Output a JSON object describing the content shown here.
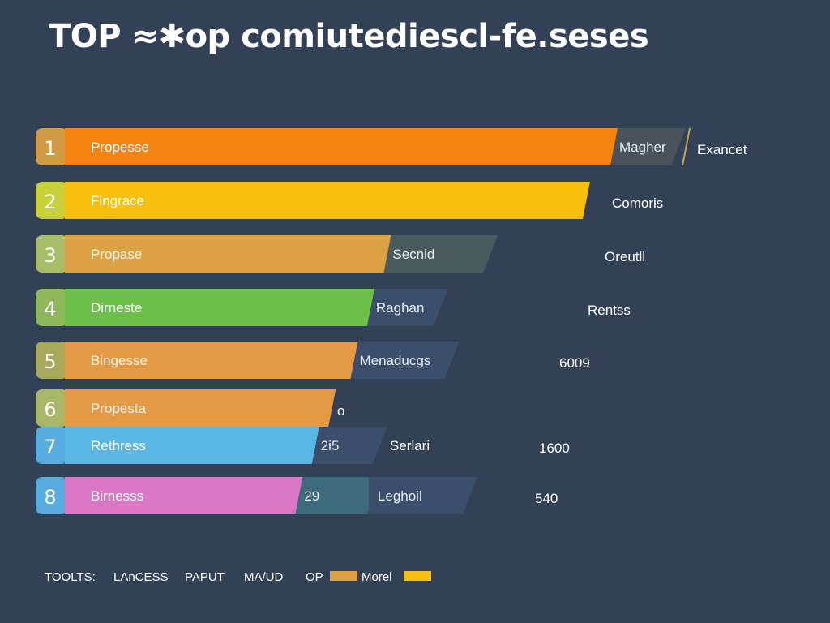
{
  "chart_data": {
    "type": "bar",
    "orientation": "horizontal",
    "title": "TOP ≈✱op comiutediescl-fe.seses",
    "rows": [
      {
        "rank": "1",
        "label": "Propesse",
        "value": 100,
        "color": "#f5830f",
        "tab_color": "#d19a47",
        "segments": [
          {
            "label": "Magher",
            "value": 11,
            "color": "#4a535b"
          }
        ],
        "right_label": "Exancet"
      },
      {
        "rank": "2",
        "label": "Fingrace",
        "value": 95,
        "color": "#f8c00c",
        "tab_color": "#c9d13a",
        "segments": [],
        "right_label": "Comoris"
      },
      {
        "rank": "3",
        "label": "Propase",
        "value": 59,
        "color": "#dca143",
        "tab_color": "#a7bd68",
        "segments": [
          {
            "label": "Secnid",
            "value": 18,
            "color": "#4a5b5d"
          }
        ],
        "right_label": "Oreutll"
      },
      {
        "rank": "4",
        "label": "Dirneste",
        "value": 56,
        "color": "#6cc04a",
        "tab_color": "#8fb85a",
        "segments": [
          {
            "label": "Raghan",
            "value": 12,
            "color": "#3b4e6c"
          }
        ],
        "right_label": "Rentss"
      },
      {
        "rank": "5",
        "label": "Bingesse",
        "value": 53,
        "color": "#e49a44",
        "tab_color": "#a8a85a",
        "segments": [
          {
            "label": "Menaducgs",
            "value": 17,
            "color": "#3b4e6c"
          }
        ],
        "right_label": "6009"
      },
      {
        "rank": "6",
        "label": "Propesta",
        "value": 49,
        "color": "#e49a44",
        "tab_color": "#a8b868",
        "segments": [],
        "right_label": "o"
      },
      {
        "rank": "7",
        "label": "Rethress",
        "value": 46,
        "color": "#5ab6e3",
        "tab_color": "#57ace0",
        "segments": [
          {
            "label": "2i5",
            "value": 11,
            "color": "#3b4e6c"
          }
        ],
        "extra_label": "Serlari",
        "right_label": "1600"
      },
      {
        "rank": "8",
        "label": "Birnesss",
        "value": 43,
        "color": "#d977c4",
        "tab_color": "#57ace0",
        "segments": [
          {
            "label": "29",
            "value": 13,
            "color": "#3b6b7c"
          },
          {
            "label": "Leghoil",
            "value": 17,
            "color": "#3b4e6c"
          }
        ],
        "right_label": "540"
      }
    ],
    "legend": [
      {
        "label": "TOOLTS:"
      },
      {
        "label": "LAnCESS"
      },
      {
        "label": "PAPUT"
      },
      {
        "label": "MA/UD"
      },
      {
        "label": "OP",
        "swatch": "#dca143"
      },
      {
        "label": "Morel",
        "swatch": "#f8c00c"
      }
    ],
    "xlim": [
      0,
      100
    ]
  }
}
